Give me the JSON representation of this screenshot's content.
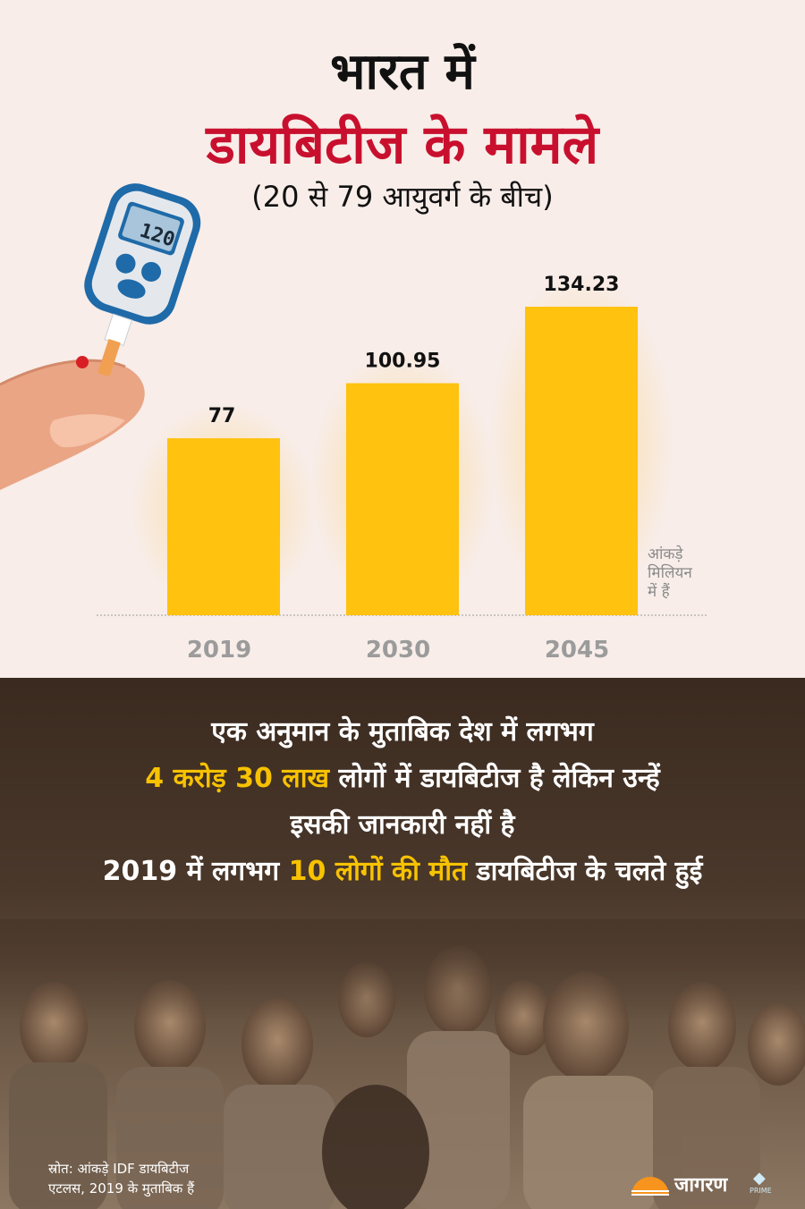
{
  "header": {
    "title_line1": "भारत में",
    "title_line2": "डायबिटीज के मामले",
    "subtitle": "(20 से 79 आयुवर्ग के बीच)"
  },
  "meter_display": "120",
  "chart_data": {
    "type": "bar",
    "categories": [
      "2019",
      "2030",
      "2045"
    ],
    "values": [
      77,
      100.95,
      134.23
    ],
    "data_labels": [
      "77",
      "100.95",
      "134.23"
    ],
    "title": "डायबिटीज के मामले",
    "unit_note": "आंकड़े मिलियन में हैं",
    "bar_color": "#ffc20e",
    "ylim": [
      0,
      134.23
    ],
    "grid": false
  },
  "unit_note_lines": [
    "आंकड़े",
    "मिलियन",
    "में हैं"
  ],
  "facts": {
    "line1": "एक अनुमान के मुताबिक देश में लगभग",
    "line2_highlight": "4 करोड़ 30 लाख",
    "line2_rest": " लोगों में डायबिटीज है लेकिन उन्हें",
    "line3": "इसकी जानकारी नहीं है",
    "line4_start": "2019 में लगभग ",
    "line4_highlight": "10 लोगों की मौत",
    "line4_rest": " डायबिटीज के चलते हुई"
  },
  "source": {
    "line1": "स्रोत: आंकड़े IDF डायबिटीज",
    "line2": "एटलस, 2019 के मुताबिक हैं"
  },
  "logo": {
    "name": "जागरण",
    "sub": "PRIME"
  },
  "colors": {
    "accent_red": "#c8102e",
    "bar_yellow": "#ffc20e",
    "highlight_yellow": "#f7c200",
    "background_top": "#f8ede9"
  }
}
